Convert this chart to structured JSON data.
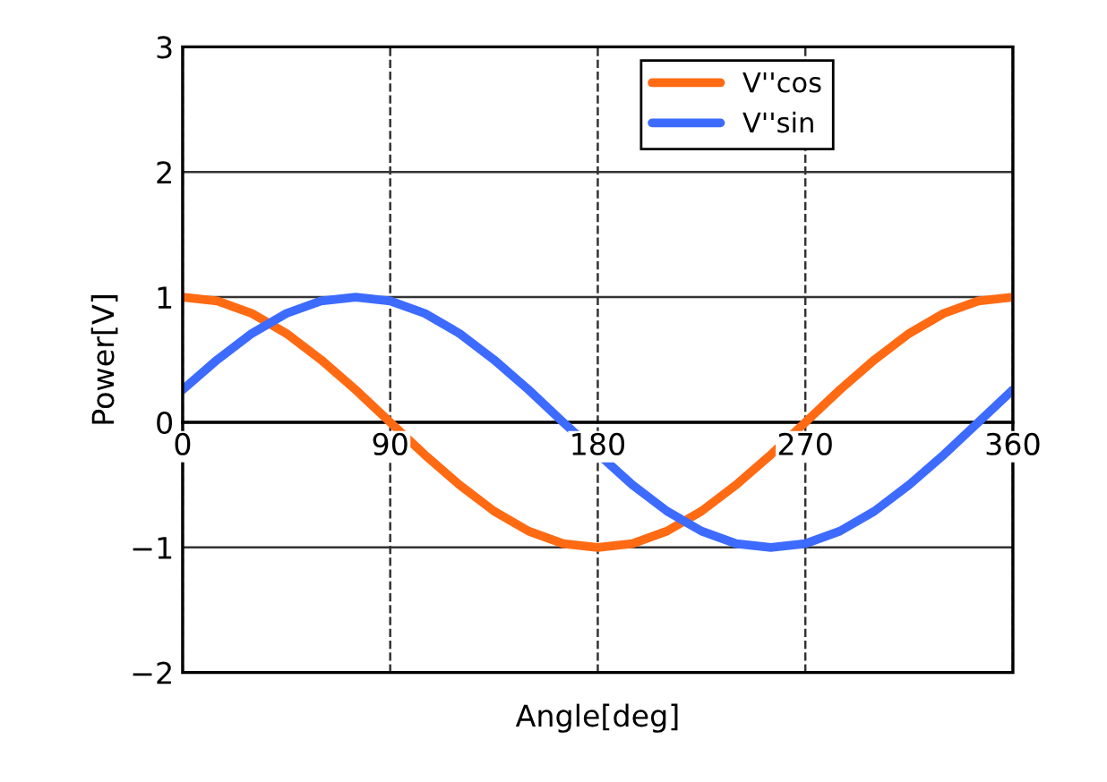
{
  "chart_data": {
    "type": "line",
    "xlabel": "Angle[deg]",
    "ylabel": "Power[V]",
    "x": [
      0,
      15,
      30,
      45,
      60,
      75,
      90,
      105,
      120,
      135,
      150,
      165,
      180,
      195,
      210,
      225,
      240,
      255,
      270,
      285,
      300,
      315,
      330,
      345,
      360
    ],
    "series": [
      {
        "name": "V''cos",
        "color": "#ff6a13",
        "values": [
          1,
          0.97,
          0.87,
          0.71,
          0.5,
          0.26,
          0,
          -0.26,
          -0.5,
          -0.71,
          -0.87,
          -0.97,
          -1,
          -0.97,
          -0.87,
          -0.71,
          -0.5,
          -0.26,
          0,
          0.26,
          0.5,
          0.71,
          0.87,
          0.97,
          1
        ]
      },
      {
        "name": "V''sin",
        "color": "#3d6bff",
        "x": [
          0,
          15,
          30,
          45,
          60,
          75,
          90,
          105,
          120,
          135,
          150,
          165,
          195,
          210,
          225,
          240,
          255,
          270,
          285,
          300,
          315,
          330,
          345,
          360
        ],
        "values": [
          0.26,
          0.5,
          0.71,
          0.87,
          0.97,
          1,
          0.97,
          0.87,
          0.71,
          0.5,
          0.26,
          0,
          -0.5,
          -0.71,
          -0.87,
          -0.97,
          -1,
          -0.97,
          -0.87,
          -0.71,
          -0.5,
          -0.26,
          0,
          0.26
        ]
      }
    ],
    "xlim": [
      0,
      360
    ],
    "xticks": [
      0,
      90,
      180,
      270,
      360
    ],
    "ylim": [
      -2,
      3
    ],
    "yticks": [
      {
        "value": -2,
        "label": "−2"
      },
      {
        "value": -1,
        "label": "−1"
      },
      0,
      1,
      2,
      3
    ],
    "grid": true,
    "legend": "top right",
    "marker": "none",
    "line_style": "solid"
  }
}
